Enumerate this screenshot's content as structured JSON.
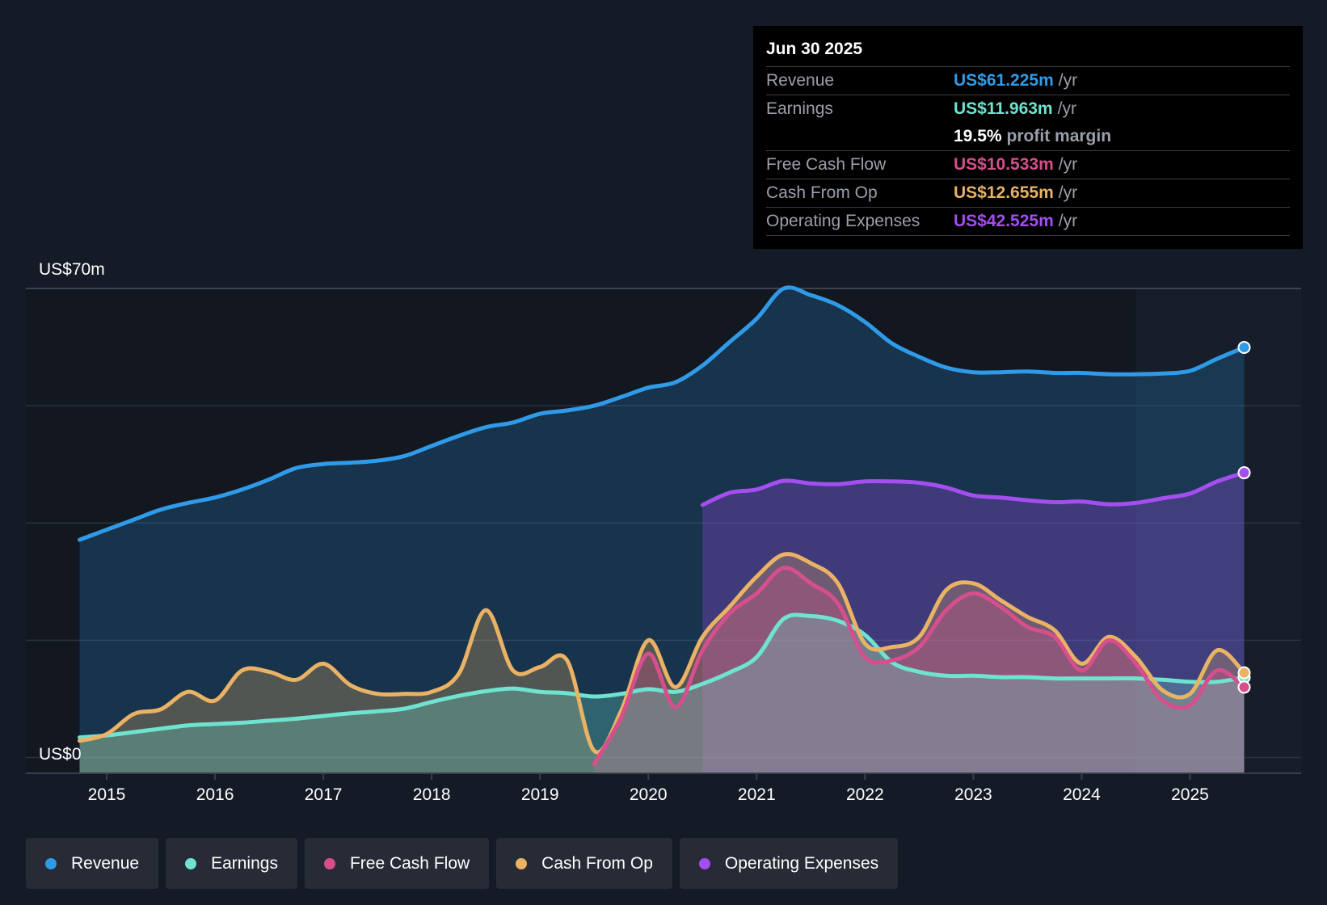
{
  "tooltip": {
    "date": "Jun 30 2025",
    "rows": [
      {
        "label": "Revenue",
        "value": "US$61.225m",
        "unit": "/yr",
        "color": "#2f9be8"
      },
      {
        "label": "Earnings",
        "value": "US$11.963m",
        "unit": "/yr",
        "color": "#6fe3d0"
      },
      {
        "label": "",
        "value": "19.5%",
        "unit": "profit margin",
        "color": "#ffffff"
      },
      {
        "label": "Free Cash Flow",
        "value": "US$10.533m",
        "unit": "/yr",
        "color": "#d64f8c"
      },
      {
        "label": "Cash From Op",
        "value": "US$12.655m",
        "unit": "/yr",
        "color": "#e9b264"
      },
      {
        "label": "Operating Expenses",
        "value": "US$42.525m",
        "unit": "/yr",
        "color": "#a44ef0"
      }
    ]
  },
  "legend": [
    {
      "label": "Revenue",
      "color": "#2f9be8"
    },
    {
      "label": "Earnings",
      "color": "#6fe3d0"
    },
    {
      "label": "Free Cash Flow",
      "color": "#d64f8c"
    },
    {
      "label": "Cash From Op",
      "color": "#e9b264"
    },
    {
      "label": "Operating Expenses",
      "color": "#a44ef0"
    }
  ],
  "chart_data": {
    "type": "area",
    "title": "",
    "xlabel": "",
    "ylabel": "",
    "y_top_label": "US$70m",
    "y_bottom_label": "US$0",
    "ylim": [
      -2,
      70
    ],
    "xlim": [
      2014.7,
      2025.5
    ],
    "grid": true,
    "x_ticks": [
      2015,
      2016,
      2017,
      2018,
      2019,
      2020,
      2021,
      2022,
      2023,
      2024,
      2025
    ],
    "forecast_start": 2024.5,
    "series": [
      {
        "name": "Revenue",
        "color": "#2f9be8",
        "x": [
          2014.75,
          2015.0,
          2015.25,
          2015.5,
          2015.75,
          2016.0,
          2016.25,
          2016.5,
          2016.75,
          2017.0,
          2017.25,
          2017.5,
          2017.75,
          2018.0,
          2018.25,
          2018.5,
          2018.75,
          2019.0,
          2019.25,
          2019.5,
          2019.75,
          2020.0,
          2020.25,
          2020.5,
          2020.75,
          2021.0,
          2021.25,
          2021.5,
          2021.75,
          2022.0,
          2022.25,
          2022.5,
          2022.75,
          2023.0,
          2023.25,
          2023.5,
          2023.75,
          2024.0,
          2024.25,
          2024.5,
          2024.75,
          2025.0,
          2025.25,
          2025.5
        ],
        "y": [
          32.5,
          34.0,
          35.5,
          37.0,
          38.0,
          38.8,
          40.0,
          41.5,
          43.2,
          43.8,
          44.0,
          44.3,
          45.0,
          46.5,
          48.0,
          49.3,
          50.0,
          51.3,
          51.8,
          52.5,
          53.8,
          55.2,
          56.0,
          58.5,
          62.0,
          65.5,
          70.0,
          69.0,
          67.5,
          65.0,
          61.8,
          59.8,
          58.2,
          57.5,
          57.5,
          57.6,
          57.4,
          57.4,
          57.2,
          57.2,
          57.3,
          57.7,
          59.5,
          61.2
        ]
      },
      {
        "name": "Earnings",
        "color": "#6fe3d0",
        "x": [
          2014.75,
          2015.0,
          2015.25,
          2015.5,
          2015.75,
          2016.0,
          2016.25,
          2016.5,
          2016.75,
          2017.0,
          2017.25,
          2017.5,
          2017.75,
          2018.0,
          2018.25,
          2018.5,
          2018.75,
          2019.0,
          2019.25,
          2019.5,
          2019.75,
          2020.0,
          2020.25,
          2020.5,
          2020.75,
          2021.0,
          2021.25,
          2021.5,
          2021.75,
          2022.0,
          2022.25,
          2022.5,
          2022.75,
          2023.0,
          2023.25,
          2023.5,
          2023.75,
          2024.0,
          2024.25,
          2024.5,
          2024.75,
          2025.0,
          2025.25,
          2025.5
        ],
        "y": [
          3.0,
          3.3,
          3.8,
          4.3,
          4.8,
          5.0,
          5.2,
          5.5,
          5.8,
          6.2,
          6.6,
          6.9,
          7.3,
          8.3,
          9.2,
          9.9,
          10.3,
          9.8,
          9.6,
          9.1,
          9.5,
          10.2,
          9.8,
          11.0,
          12.7,
          15.0,
          20.7,
          21.1,
          20.4,
          18.3,
          14.2,
          12.8,
          12.2,
          12.2,
          12.0,
          12.0,
          11.8,
          11.8,
          11.8,
          11.8,
          11.6,
          11.3,
          11.3,
          11.96
        ]
      },
      {
        "name": "Free Cash Flow",
        "color": "#d64f8c",
        "x": [
          2019.5,
          2019.75,
          2020.0,
          2020.25,
          2020.5,
          2020.75,
          2021.0,
          2021.25,
          2021.5,
          2021.75,
          2022.0,
          2022.25,
          2022.5,
          2022.75,
          2023.0,
          2023.25,
          2023.5,
          2023.75,
          2024.0,
          2024.25,
          2024.5,
          2024.75,
          2025.0,
          2025.25,
          2025.5
        ],
        "y": [
          -1.0,
          6.0,
          15.5,
          7.5,
          16.0,
          21.5,
          24.5,
          28.3,
          26.0,
          23.0,
          15.0,
          14.5,
          16.5,
          22.0,
          24.5,
          22.5,
          19.5,
          18.0,
          13.0,
          17.5,
          14.0,
          8.5,
          7.8,
          13.0,
          10.5
        ]
      },
      {
        "name": "Cash From Op",
        "color": "#e9b264",
        "x": [
          2014.75,
          2015.0,
          2015.25,
          2015.5,
          2015.75,
          2016.0,
          2016.25,
          2016.5,
          2016.75,
          2017.0,
          2017.25,
          2017.5,
          2017.75,
          2018.0,
          2018.25,
          2018.5,
          2018.75,
          2019.0,
          2019.25,
          2019.5,
          2019.75,
          2020.0,
          2020.25,
          2020.5,
          2020.75,
          2021.0,
          2021.25,
          2021.5,
          2021.75,
          2022.0,
          2022.25,
          2022.5,
          2022.75,
          2023.0,
          2023.25,
          2023.5,
          2023.75,
          2024.0,
          2024.25,
          2024.5,
          2024.75,
          2025.0,
          2025.25,
          2025.5
        ],
        "y": [
          2.5,
          3.5,
          6.5,
          7.2,
          9.8,
          8.5,
          13.0,
          12.8,
          11.6,
          14.0,
          10.8,
          9.5,
          9.5,
          9.8,
          12.5,
          22.0,
          13.0,
          13.5,
          14.5,
          1.0,
          7.0,
          17.5,
          10.5,
          18.0,
          22.5,
          27.0,
          30.3,
          29.0,
          26.0,
          17.0,
          16.5,
          18.0,
          25.0,
          26.0,
          23.5,
          21.0,
          19.0,
          14.0,
          18.0,
          15.0,
          10.0,
          9.5,
          16.0,
          12.65
        ]
      },
      {
        "name": "Operating Expenses",
        "color": "#a44ef0",
        "x": [
          2020.5,
          2020.75,
          2021.0,
          2021.25,
          2021.5,
          2021.75,
          2022.0,
          2022.25,
          2022.5,
          2022.75,
          2023.0,
          2023.25,
          2023.5,
          2023.75,
          2024.0,
          2024.25,
          2024.5,
          2024.75,
          2025.0,
          2025.25,
          2025.5
        ],
        "y": [
          37.7,
          39.5,
          40.0,
          41.3,
          40.9,
          40.8,
          41.2,
          41.2,
          41.0,
          40.3,
          39.1,
          38.8,
          38.4,
          38.1,
          38.2,
          37.8,
          38.0,
          38.7,
          39.4,
          41.2,
          42.5
        ]
      }
    ]
  }
}
